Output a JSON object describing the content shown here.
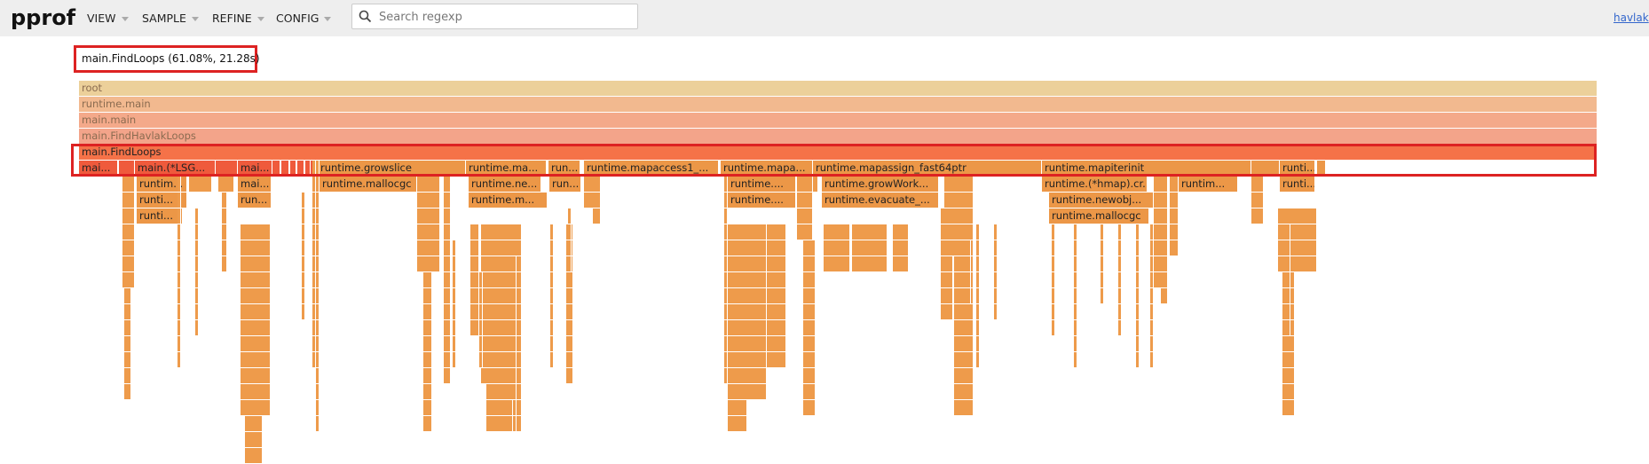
{
  "header": {
    "logo": "pprof",
    "menus": [
      {
        "label": "VIEW"
      },
      {
        "label": "SAMPLE"
      },
      {
        "label": "REFINE"
      },
      {
        "label": "CONFIG"
      }
    ],
    "search": {
      "placeholder": "Search regexp",
      "value": ""
    },
    "profile_link": "havlak"
  },
  "detail": {
    "text": "main.FindLoops (61.08%, 21.28s)"
  },
  "colors": {
    "root": "#ecd09a",
    "runtime_main": "#f2b98f",
    "main_main": "#f4a98a",
    "main_findhavlak": "#f3a48a",
    "findloops": "#f57248",
    "main_child": "#ef5a3c",
    "runtime": "#ec9747",
    "deep": "#ee9b4b",
    "highlight": "#dd2222"
  },
  "flame": {
    "rows": [
      [
        {
          "label": "root",
          "kind": "upper",
          "color": "root"
        }
      ],
      [
        {
          "label": "runtime.main",
          "kind": "upper",
          "color": "runtime_main"
        }
      ],
      [
        {
          "label": "main.main",
          "kind": "upper",
          "color": "main_main"
        }
      ],
      [
        {
          "label": "main.FindHavlakLoops",
          "kind": "upper",
          "color": "main_findhavlak"
        }
      ],
      [
        {
          "label": "main.FindLoops",
          "color": "findloops"
        }
      ],
      [
        {
          "label": "mai..."
        },
        {
          "label": "main.(*LSG..."
        },
        {
          "label": "mai..."
        },
        {
          "label": "runtime.growslice"
        },
        {
          "label": "runtime.ma..."
        },
        {
          "label": "run..."
        },
        {
          "label": "runtime.mapaccess1_..."
        },
        {
          "label": "runtime.mapa..."
        },
        {
          "label": "runtime.mapassign_fast64ptr"
        },
        {
          "label": "runtime.mapiterinit"
        },
        {
          "label": "runti..."
        }
      ],
      [
        {
          "label": "runtim..."
        },
        {
          "label": "mai..."
        },
        {
          "label": "runtime.mallocgc"
        },
        {
          "label": "runtime.ne..."
        },
        {
          "label": "run..."
        },
        {
          "label": "runtime...."
        },
        {
          "label": "runtime.growWork..."
        },
        {
          "label": "runtime.(*hmap).cr..."
        },
        {
          "label": "runtim..."
        },
        {
          "label": "runti..."
        }
      ],
      [
        {
          "label": "runti..."
        },
        {
          "label": "run..."
        },
        {
          "label": "runtime.m..."
        },
        {
          "label": "runtime...."
        },
        {
          "label": "runtime.evacuate_..."
        },
        {
          "label": "runtime.newobj..."
        }
      ],
      [
        {
          "label": "runti..."
        },
        {
          "label": "runtime.mallocgc"
        }
      ]
    ]
  }
}
